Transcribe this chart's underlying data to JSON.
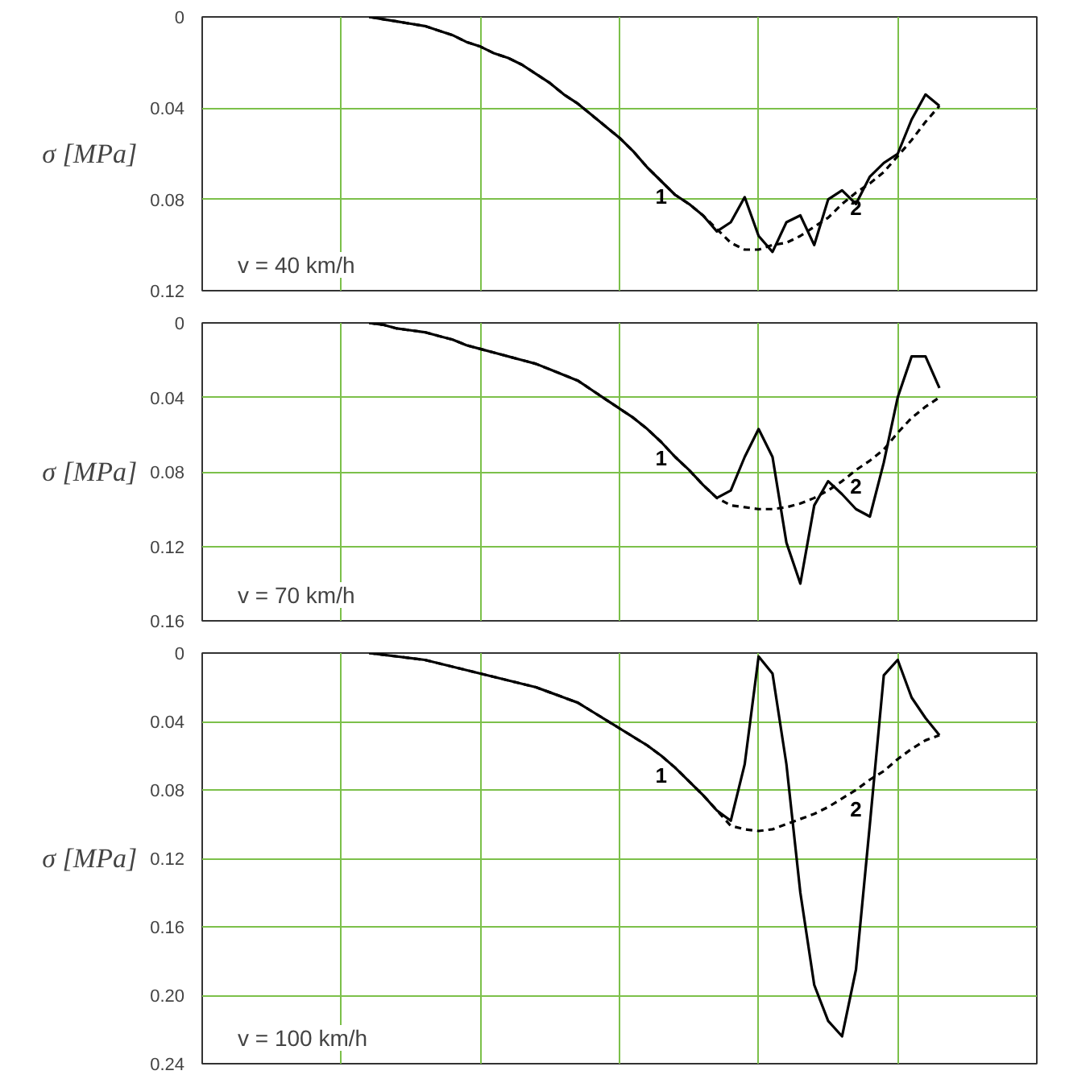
{
  "chart_data": [
    {
      "type": "line",
      "ylabel": "σ [MPa]",
      "categories": [
        null,
        null,
        null,
        null,
        null,
        null,
        null,
        null,
        null,
        null,
        null,
        null,
        null,
        null,
        null,
        null,
        null,
        null,
        null,
        null,
        null,
        null,
        null,
        null,
        null,
        null,
        null,
        null,
        null,
        null,
        null,
        null,
        null,
        null,
        null,
        null,
        null,
        null,
        null,
        null,
        null,
        null,
        null,
        null,
        null,
        null,
        null,
        null,
        null,
        null,
        null,
        null,
        null,
        null,
        null,
        null,
        null,
        null,
        null,
        null,
        null
      ],
      "ylim": [
        0.12,
        0
      ],
      "yticks": [
        0,
        0.04,
        0.08,
        0.12
      ],
      "tick_labels": "y",
      "grid": true,
      "series": [
        {
          "name": "1",
          "color": "#000000",
          "line_style": "solid",
          "values": [
            null,
            null,
            null,
            null,
            null,
            null,
            null,
            null,
            null,
            null,
            null,
            null,
            0,
            0.001,
            0.002,
            0.003,
            0.004,
            0.006,
            0.008,
            0.011,
            0.013,
            0.016,
            0.018,
            0.021,
            0.025,
            0.029,
            0.034,
            0.038,
            0.043,
            0.048,
            0.053,
            0.059,
            0.066,
            0.072,
            0.078,
            0.082,
            0.087,
            0.094,
            0.09,
            0.079,
            0.096,
            0.103,
            0.09,
            0.087,
            0.1,
            0.08,
            0.076,
            0.082,
            0.07,
            0.064,
            0.06,
            0.045,
            0.034,
            0.039,
            null,
            null,
            null,
            null,
            null,
            null,
            null
          ]
        },
        {
          "name": "2",
          "color": "#000000",
          "line_style": "dashed",
          "values": [
            null,
            null,
            null,
            null,
            null,
            null,
            null,
            null,
            null,
            null,
            null,
            null,
            0,
            0.001,
            0.002,
            0.003,
            0.004,
            0.006,
            0.008,
            0.011,
            0.013,
            0.016,
            0.018,
            0.021,
            0.025,
            0.029,
            0.034,
            0.038,
            0.043,
            0.048,
            0.053,
            0.059,
            0.066,
            0.072,
            0.078,
            0.082,
            0.087,
            0.093,
            0.099,
            0.102,
            0.102,
            0.1,
            0.099,
            0.096,
            0.092,
            0.088,
            0.082,
            0.077,
            0.073,
            0.068,
            0.061,
            0.054,
            0.046,
            0.039,
            null,
            null,
            null,
            null,
            null,
            null,
            null
          ]
        }
      ],
      "annotations": [
        "v = 40 km/h"
      ]
    },
    {
      "type": "line",
      "ylabel": "σ [MPa]",
      "categories": [
        null,
        null,
        null,
        null,
        null,
        null,
        null,
        null,
        null,
        null,
        null,
        null,
        null,
        null,
        null,
        null,
        null,
        null,
        null,
        null,
        null,
        null,
        null,
        null,
        null,
        null,
        null,
        null,
        null,
        null,
        null,
        null,
        null,
        null,
        null,
        null,
        null,
        null,
        null,
        null,
        null,
        null,
        null,
        null,
        null,
        null,
        null,
        null,
        null,
        null,
        null,
        null,
        null,
        null,
        null,
        null,
        null,
        null,
        null,
        null,
        null
      ],
      "ylim": [
        0.16,
        0
      ],
      "yticks": [
        0,
        0.04,
        0.08,
        0.12,
        0.16
      ],
      "tick_labels": "y",
      "grid": true,
      "series": [
        {
          "name": "1",
          "color": "#000000",
          "line_style": "solid",
          "values": [
            null,
            null,
            null,
            null,
            null,
            null,
            null,
            null,
            null,
            null,
            null,
            null,
            0,
            0.001,
            0.003,
            0.004,
            0.005,
            0.007,
            0.009,
            0.012,
            0.014,
            0.016,
            0.018,
            0.02,
            0.022,
            0.025,
            0.028,
            0.031,
            0.036,
            0.041,
            0.046,
            0.051,
            0.057,
            0.064,
            0.072,
            0.079,
            0.087,
            0.094,
            0.09,
            0.072,
            0.057,
            0.072,
            0.118,
            0.14,
            0.098,
            0.085,
            0.092,
            0.1,
            0.104,
            0.075,
            0.04,
            0.018,
            0.018,
            0.035,
            null,
            null,
            null,
            null,
            null,
            null,
            null
          ]
        },
        {
          "name": "2",
          "color": "#000000",
          "line_style": "dashed",
          "values": [
            null,
            null,
            null,
            null,
            null,
            null,
            null,
            null,
            null,
            null,
            null,
            null,
            0,
            0.001,
            0.003,
            0.004,
            0.005,
            0.007,
            0.009,
            0.012,
            0.014,
            0.016,
            0.018,
            0.02,
            0.022,
            0.025,
            0.028,
            0.031,
            0.036,
            0.041,
            0.046,
            0.051,
            0.057,
            0.064,
            0.072,
            0.079,
            0.087,
            0.094,
            0.098,
            0.099,
            0.1,
            0.1,
            0.099,
            0.097,
            0.094,
            0.09,
            0.085,
            0.079,
            0.074,
            0.068,
            0.059,
            0.051,
            0.045,
            0.04,
            null,
            null,
            null,
            null,
            null,
            null,
            null
          ]
        }
      ],
      "annotations": [
        "v = 70 km/h"
      ]
    },
    {
      "type": "line",
      "ylabel": "σ [MPa]",
      "categories": [
        null,
        null,
        null,
        null,
        null,
        null,
        null,
        null,
        null,
        null,
        null,
        null,
        null,
        null,
        null,
        null,
        null,
        null,
        null,
        null,
        null,
        null,
        null,
        null,
        null,
        null,
        null,
        null,
        null,
        null,
        null,
        null,
        null,
        null,
        null,
        null,
        null,
        null,
        null,
        null,
        null,
        null,
        null,
        null,
        null,
        null,
        null,
        null,
        null,
        null,
        null,
        null,
        null,
        null,
        null,
        null,
        null,
        null,
        null,
        null,
        null
      ],
      "ylim": [
        0.24,
        0
      ],
      "yticks": [
        0,
        0.04,
        0.08,
        0.12,
        0.16,
        {
          "value": 0.2,
          "label": "0.20"
        },
        0.24
      ],
      "tick_labels": "y",
      "grid": true,
      "series": [
        {
          "name": "1",
          "color": "#000000",
          "line_style": "solid",
          "values": [
            null,
            null,
            null,
            null,
            null,
            null,
            null,
            null,
            null,
            null,
            null,
            null,
            0,
            0.001,
            0.002,
            0.003,
            0.004,
            0.006,
            0.008,
            0.01,
            0.012,
            0.014,
            0.016,
            0.018,
            0.02,
            0.023,
            0.026,
            0.029,
            0.034,
            0.039,
            0.044,
            0.049,
            0.054,
            0.06,
            0.067,
            0.075,
            0.083,
            0.092,
            0.098,
            0.065,
            0.002,
            0.012,
            0.065,
            0.14,
            0.194,
            0.215,
            0.224,
            0.185,
            0.1,
            0.013,
            0.004,
            0.026,
            0.038,
            0.048,
            null,
            null,
            null,
            null,
            null,
            null,
            null
          ]
        },
        {
          "name": "2",
          "color": "#000000",
          "line_style": "dashed",
          "values": [
            null,
            null,
            null,
            null,
            null,
            null,
            null,
            null,
            null,
            null,
            null,
            null,
            0,
            0.001,
            0.002,
            0.003,
            0.004,
            0.006,
            0.008,
            0.01,
            0.012,
            0.014,
            0.016,
            0.018,
            0.02,
            0.023,
            0.026,
            0.029,
            0.034,
            0.039,
            0.044,
            0.049,
            0.054,
            0.06,
            0.067,
            0.075,
            0.083,
            0.092,
            0.101,
            0.103,
            0.104,
            0.103,
            0.1,
            0.097,
            0.094,
            0.09,
            0.085,
            0.08,
            0.074,
            0.069,
            0.062,
            0.056,
            0.051,
            0.048,
            null,
            null,
            null,
            null,
            null,
            null,
            null
          ]
        }
      ],
      "annotations": [
        "v = 100 km/h"
      ]
    }
  ]
}
